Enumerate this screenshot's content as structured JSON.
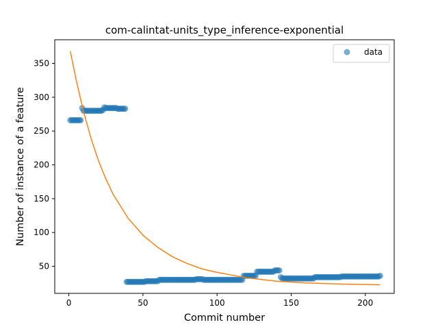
{
  "chart_data": {
    "type": "scatter",
    "title": "com-calintat-units_type_inference-exponential",
    "xlabel": "Commit number",
    "ylabel": "Number of instance of a feature",
    "xlim": [
      -9.5,
      219.5
    ],
    "ylim": [
      10,
      385
    ],
    "xticks": [
      0,
      50,
      100,
      150,
      200
    ],
    "yticks": [
      50,
      100,
      150,
      200,
      250,
      300,
      350
    ],
    "grid": false,
    "legend": {
      "position": "top-right",
      "entries": [
        "data"
      ]
    },
    "series": [
      {
        "name": "data",
        "kind": "scatter",
        "color": "#1f77b4",
        "segments": [
          {
            "from": 1,
            "to": 8,
            "value": 266
          },
          {
            "from": 9,
            "to": 9,
            "value": 284
          },
          {
            "from": 10,
            "to": 22,
            "value": 280
          },
          {
            "from": 23,
            "to": 23,
            "value": 281
          },
          {
            "from": 24,
            "to": 24,
            "value": 285
          },
          {
            "from": 25,
            "to": 32,
            "value": 284
          },
          {
            "from": 33,
            "to": 38,
            "value": 283
          },
          {
            "from": 39,
            "to": 51,
            "value": 27
          },
          {
            "from": 52,
            "to": 60,
            "value": 28
          },
          {
            "from": 61,
            "to": 85,
            "value": 30
          },
          {
            "from": 86,
            "to": 90,
            "value": 31
          },
          {
            "from": 91,
            "to": 117,
            "value": 30
          },
          {
            "from": 118,
            "to": 126,
            "value": 36
          },
          {
            "from": 127,
            "to": 138,
            "value": 42
          },
          {
            "from": 139,
            "to": 142,
            "value": 44
          },
          {
            "from": 143,
            "to": 143,
            "value": 34
          },
          {
            "from": 144,
            "to": 165,
            "value": 32
          },
          {
            "from": 166,
            "to": 183,
            "value": 34
          },
          {
            "from": 184,
            "to": 209,
            "value": 35
          },
          {
            "from": 210,
            "to": 210,
            "value": 36
          }
        ]
      },
      {
        "name": "",
        "kind": "line",
        "color": "#ff7f0e",
        "x": [
          1,
          5,
          10,
          15,
          20,
          25,
          30,
          40,
          50,
          60,
          70,
          80,
          90,
          100,
          120,
          140,
          160,
          180,
          200,
          210
        ],
        "y": [
          368,
          325,
          278,
          239,
          206,
          179,
          156,
          121,
          96,
          78,
          64,
          54,
          46,
          41,
          33,
          28,
          25.5,
          24,
          23,
          22.5
        ]
      }
    ]
  }
}
